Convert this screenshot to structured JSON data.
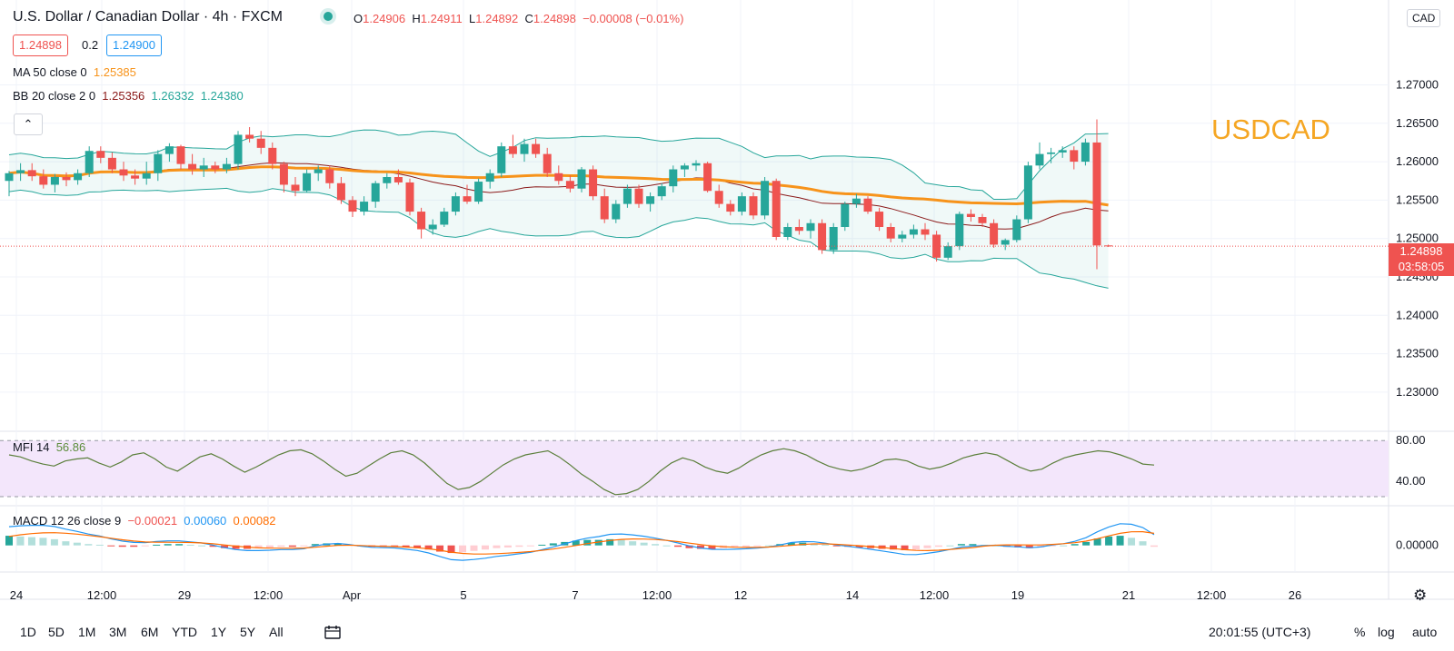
{
  "header": {
    "title": "U.S. Dollar / Canadian Dollar · 4h · FXCM",
    "ohlc": {
      "o_label": "O",
      "o": "1.24906",
      "h_label": "H",
      "h": "1.24911",
      "l_label": "L",
      "l": "1.24892",
      "c_label": "C",
      "c": "1.24898",
      "chg": "−0.00008 (−0.01%)"
    },
    "bid": "1.24898",
    "spread": "0.2",
    "ask": "1.24900",
    "currency_button": "CAD",
    "collapse_icon": "chevron-up-icon"
  },
  "indicators": {
    "ma": {
      "label": "MA 50 close 0",
      "value": "1.25385"
    },
    "bb": {
      "label": "BB 20 close 2 0",
      "basis": "1.25356",
      "upper": "1.26332",
      "lower": "1.24380"
    },
    "mfi": {
      "label": "MFI 14",
      "value": "56.86"
    },
    "macd": {
      "label": "MACD 12 26 close 9",
      "hist": "−0.00021",
      "macd": "0.00060",
      "signal": "0.00082"
    }
  },
  "watermark": "USDCAD",
  "last_price": {
    "price": "1.24898",
    "countdown": "03:58:05"
  },
  "colors": {
    "up": "#26a69a",
    "down": "#ef5350",
    "ma": "#f7931a",
    "bb_band": "#26a69a",
    "bb_basis": "#8b1a1a",
    "mfi_fill": "#f3e6fb",
    "macd": "#2196f3",
    "signal": "#ff6d00"
  },
  "toolbar": {
    "timeframes": [
      "1D",
      "5D",
      "1M",
      "3M",
      "6M",
      "YTD",
      "1Y",
      "5Y",
      "All"
    ],
    "compare_icon": "calendar-range-icon",
    "time": "20:01:55 (UTC+3)",
    "percent": "%",
    "log": "log",
    "auto": "auto",
    "settings_icon": "gear-icon"
  },
  "chart_data": [
    {
      "type": "candlestick",
      "title": "U.S. Dollar / Canadian Dollar · 4h · FXCM",
      "y_ticks": [
        "1.23000",
        "1.23500",
        "1.24000",
        "1.24500",
        "1.25000",
        "1.25500",
        "1.26000",
        "1.26500",
        "1.27000"
      ],
      "ylim": [
        1.2255,
        1.2775
      ],
      "x_ticks": [
        "24",
        "12:00",
        "29",
        "12:00",
        "Apr",
        "5",
        "7",
        "12:00",
        "12",
        "14",
        "12:00",
        "19",
        "21",
        "12:00",
        "26"
      ],
      "bars": [
        [
          1.2575,
          1.2588,
          1.2555,
          1.2585
        ],
        [
          1.2585,
          1.2598,
          1.2575,
          1.2589
        ],
        [
          1.2589,
          1.2598,
          1.2575,
          1.2581
        ],
        [
          1.2581,
          1.259,
          1.2565,
          1.257
        ],
        [
          1.257,
          1.2584,
          1.256,
          1.258
        ],
        [
          1.258,
          1.2586,
          1.2568,
          1.2576
        ],
        [
          1.2576,
          1.259,
          1.257,
          1.2585
        ],
        [
          1.2585,
          1.262,
          1.258,
          1.2614
        ],
        [
          1.2614,
          1.262,
          1.2598,
          1.2605
        ],
        [
          1.2605,
          1.2612,
          1.2585,
          1.259
        ],
        [
          1.259,
          1.26,
          1.2575,
          1.2582
        ],
        [
          1.2582,
          1.259,
          1.257,
          1.2578
        ],
        [
          1.2578,
          1.26,
          1.257,
          1.2585
        ],
        [
          1.2585,
          1.2615,
          1.2575,
          1.261
        ],
        [
          1.261,
          1.2624,
          1.26,
          1.262
        ],
        [
          1.262,
          1.2622,
          1.259,
          1.2597
        ],
        [
          1.2597,
          1.261,
          1.2583,
          1.259
        ],
        [
          1.259,
          1.2605,
          1.258,
          1.2595
        ],
        [
          1.2595,
          1.26,
          1.2585,
          1.259
        ],
        [
          1.259,
          1.2605,
          1.2585,
          1.2597
        ],
        [
          1.2597,
          1.264,
          1.259,
          1.2635
        ],
        [
          1.2635,
          1.2645,
          1.2625,
          1.263
        ],
        [
          1.263,
          1.264,
          1.261,
          1.2618
        ],
        [
          1.2618,
          1.2625,
          1.259,
          1.2597
        ],
        [
          1.2597,
          1.26,
          1.256,
          1.257
        ],
        [
          1.257,
          1.258,
          1.2555,
          1.2562
        ],
        [
          1.2562,
          1.259,
          1.256,
          1.2585
        ],
        [
          1.2585,
          1.2595,
          1.2575,
          1.259
        ],
        [
          1.259,
          1.2595,
          1.2565,
          1.2572
        ],
        [
          1.2572,
          1.258,
          1.2545,
          1.255
        ],
        [
          1.255,
          1.2555,
          1.2528,
          1.2535
        ],
        [
          1.2535,
          1.2555,
          1.253,
          1.2548
        ],
        [
          1.2548,
          1.2575,
          1.254,
          1.2572
        ],
        [
          1.2572,
          1.2585,
          1.2565,
          1.258
        ],
        [
          1.258,
          1.259,
          1.257,
          1.2573
        ],
        [
          1.2573,
          1.2578,
          1.253,
          1.2535
        ],
        [
          1.2535,
          1.254,
          1.25,
          1.2512
        ],
        [
          1.2512,
          1.2525,
          1.2505,
          1.2518
        ],
        [
          1.2518,
          1.254,
          1.2515,
          1.2535
        ],
        [
          1.2535,
          1.256,
          1.253,
          1.2555
        ],
        [
          1.2555,
          1.257,
          1.2545,
          1.2548
        ],
        [
          1.2548,
          1.2578,
          1.2545,
          1.2574
        ],
        [
          1.2574,
          1.259,
          1.2565,
          1.2585
        ],
        [
          1.2585,
          1.2625,
          1.258,
          1.262
        ],
        [
          1.262,
          1.2635,
          1.2605,
          1.261
        ],
        [
          1.261,
          1.263,
          1.26,
          1.2623
        ],
        [
          1.2623,
          1.263,
          1.2605,
          1.261
        ],
        [
          1.261,
          1.2618,
          1.258,
          1.2585
        ],
        [
          1.2585,
          1.2595,
          1.257,
          1.2575
        ],
        [
          1.2575,
          1.2582,
          1.256,
          1.2565
        ],
        [
          1.2565,
          1.2593,
          1.256,
          1.259
        ],
        [
          1.259,
          1.2595,
          1.255,
          1.2555
        ],
        [
          1.2555,
          1.2565,
          1.252,
          1.2525
        ],
        [
          1.2525,
          1.255,
          1.252,
          1.2545
        ],
        [
          1.2545,
          1.257,
          1.254,
          1.2565
        ],
        [
          1.2565,
          1.257,
          1.254,
          1.2545
        ],
        [
          1.2545,
          1.256,
          1.2535,
          1.2555
        ],
        [
          1.2555,
          1.2572,
          1.255,
          1.2568
        ],
        [
          1.2568,
          1.2595,
          1.256,
          1.259
        ],
        [
          1.259,
          1.2598,
          1.258,
          1.2595
        ],
        [
          1.2595,
          1.2602,
          1.2588,
          1.2598
        ],
        [
          1.2598,
          1.26,
          1.256,
          1.2562
        ],
        [
          1.2562,
          1.257,
          1.254,
          1.2545
        ],
        [
          1.2545,
          1.255,
          1.253,
          1.2535
        ],
        [
          1.2535,
          1.256,
          1.253,
          1.2555
        ],
        [
          1.2555,
          1.256,
          1.2525,
          1.253
        ],
        [
          1.253,
          1.258,
          1.2525,
          1.2575
        ],
        [
          1.2575,
          1.2578,
          1.2498,
          1.2502
        ],
        [
          1.2502,
          1.252,
          1.2498,
          1.2515
        ],
        [
          1.2515,
          1.2525,
          1.2505,
          1.251
        ],
        [
          1.251,
          1.2525,
          1.25,
          1.252
        ],
        [
          1.252,
          1.2525,
          1.248,
          1.2485
        ],
        [
          1.2485,
          1.252,
          1.248,
          1.2515
        ],
        [
          1.2515,
          1.2548,
          1.251,
          1.2545
        ],
        [
          1.2545,
          1.2558,
          1.254,
          1.2552
        ],
        [
          1.2552,
          1.2555,
          1.2532,
          1.2535
        ],
        [
          1.2535,
          1.254,
          1.251,
          1.2515
        ],
        [
          1.2515,
          1.252,
          1.2495,
          1.25
        ],
        [
          1.25,
          1.251,
          1.2495,
          1.2505
        ],
        [
          1.2505,
          1.2518,
          1.25,
          1.2512
        ],
        [
          1.2512,
          1.252,
          1.2498,
          1.2505
        ],
        [
          1.2505,
          1.251,
          1.247,
          1.2475
        ],
        [
          1.2475,
          1.2495,
          1.2472,
          1.249
        ],
        [
          1.249,
          1.2535,
          1.2485,
          1.2532
        ],
        [
          1.2532,
          1.2538,
          1.2522,
          1.2528
        ],
        [
          1.2528,
          1.2532,
          1.2515,
          1.252
        ],
        [
          1.252,
          1.2525,
          1.2488,
          1.2492
        ],
        [
          1.2492,
          1.25,
          1.2485,
          1.2498
        ],
        [
          1.2498,
          1.253,
          1.2495,
          1.2525
        ],
        [
          1.2525,
          1.26,
          1.252,
          1.2595
        ],
        [
          1.2595,
          1.2625,
          1.259,
          1.261
        ],
        [
          1.261,
          1.2618,
          1.2598,
          1.2612
        ],
        [
          1.2612,
          1.262,
          1.2605,
          1.2615
        ],
        [
          1.2615,
          1.262,
          1.259,
          1.26
        ],
        [
          1.26,
          1.263,
          1.2595,
          1.2625
        ],
        [
          1.2625,
          1.2655,
          1.246,
          1.2491
        ],
        [
          1.2491,
          1.2492,
          1.2489,
          1.249
        ]
      ]
    },
    {
      "type": "line",
      "title": "MFI 14",
      "ylim": [
        25,
        82
      ],
      "y_ticks": [
        "40.00",
        "80.00"
      ],
      "values": [
        66,
        64,
        60,
        57,
        55,
        60,
        62,
        63,
        58,
        54,
        59,
        66,
        68,
        62,
        54,
        50,
        57,
        64,
        67,
        62,
        55,
        49,
        54,
        60,
        66,
        70,
        71,
        67,
        60,
        52,
        45,
        48,
        55,
        62,
        68,
        70,
        66,
        58,
        48,
        38,
        32,
        34,
        40,
        48,
        56,
        62,
        66,
        68,
        70,
        64,
        56,
        47,
        40,
        32,
        27,
        28,
        32,
        40,
        50,
        58,
        63,
        60,
        54,
        50,
        48,
        53,
        60,
        66,
        70,
        72,
        70,
        66,
        60,
        55,
        52,
        50,
        52,
        56,
        61,
        62,
        60,
        55,
        52,
        54,
        58,
        63,
        66,
        68,
        66,
        60,
        54,
        50,
        52,
        58,
        63,
        66,
        68,
        70,
        69,
        66,
        62,
        57,
        56
      ]
    },
    {
      "type": "bar",
      "title": "MACD 12 26 close 9",
      "ylim": [
        -0.0032,
        0.0051
      ],
      "y_ticks": [
        "0.00000"
      ],
      "series": [
        {
          "name": "Histogram",
          "values": [
            0.0014,
            0.0013,
            0.0012,
            0.0011,
            0.0009,
            0.0006,
            0.0004,
            0.0002,
            0.0001,
            -0.0001,
            -0.0002,
            -0.0002,
            -0.0001,
            0.0001,
            0.0002,
            0.0002,
            0.0001,
            0.0,
            -0.0002,
            -0.0004,
            -0.0005,
            -0.0005,
            -0.0004,
            -0.0003,
            -0.0002,
            -0.0002,
            -0.0001,
            0.0002,
            0.0003,
            0.0003,
            0.0001,
            -0.0001,
            -0.0002,
            -0.0002,
            -0.0002,
            -0.0003,
            -0.0004,
            -0.0006,
            -0.0009,
            -0.0011,
            -0.001,
            -0.0008,
            -0.0006,
            -0.0004,
            -0.0003,
            -0.0002,
            -0.0001,
            0.0001,
            0.0003,
            0.0005,
            0.0007,
            0.0008,
            0.0008,
            0.0009,
            0.0008,
            0.0006,
            0.0004,
            0.0002,
            0.0,
            -0.0002,
            -0.0004,
            -0.0005,
            -0.0005,
            -0.0004,
            -0.0003,
            -0.0002,
            -0.0001,
            0.0,
            0.0002,
            0.0004,
            0.0004,
            0.0003,
            0.0001,
            -0.0001,
            -0.0002,
            -0.0003,
            -0.0004,
            -0.0005,
            -0.0006,
            -0.0007,
            -0.0006,
            -0.0004,
            -0.0002,
            0.0,
            0.0002,
            0.0002,
            0.0001,
            0.0,
            -0.0002,
            -0.0003,
            -0.0004,
            -0.0003,
            -0.0001,
            0.0,
            0.0002,
            0.0005,
            0.001,
            0.0013,
            0.0014,
            0.0011,
            0.0006,
            -0.0002
          ]
        }
      ]
    }
  ]
}
